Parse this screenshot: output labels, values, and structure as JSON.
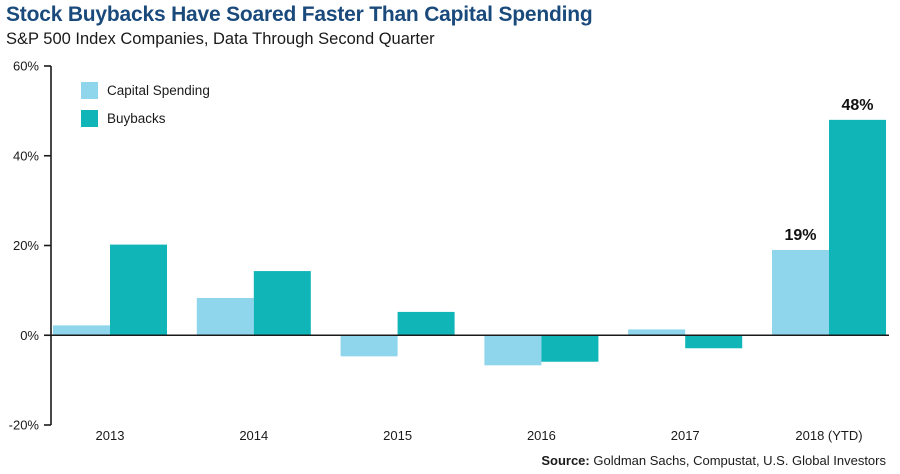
{
  "header": {
    "title": "Stock Buybacks Have Soared Faster Than Capital Spending",
    "subtitle": "S&P 500 Index Companies, Data Through Second Quarter"
  },
  "footer": {
    "source_label": "Source:",
    "source_text": " Goldman Sachs, Compustat, U.S. Global Investors"
  },
  "chart_data": {
    "type": "bar",
    "title": "Stock Buybacks Have Soared Faster Than Capital Spending",
    "subtitle": "S&P 500 Index Companies, Data Through Second Quarter",
    "xlabel": "",
    "ylabel": "",
    "categories": [
      "2013",
      "2014",
      "2015",
      "2016",
      "2017",
      "2018 (YTD)"
    ],
    "series": [
      {
        "name": "Capital Spending",
        "color": "#8fd6ec",
        "values": [
          2.2,
          8.3,
          -4.7,
          -6.7,
          1.3,
          19
        ]
      },
      {
        "name": "Buybacks",
        "color": "#10b5b8",
        "values": [
          20.2,
          14.3,
          5.2,
          -5.9,
          -2.9,
          48
        ]
      }
    ],
    "ylim": [
      -20,
      60
    ],
    "yticks": [
      -20,
      0,
      20,
      40,
      60
    ],
    "ytick_labels": [
      "-20%",
      "0%",
      "20%",
      "40%",
      "60%"
    ],
    "data_labels": [
      {
        "series": "Capital Spending",
        "category": "2018 (YTD)",
        "text": "19%"
      },
      {
        "series": "Buybacks",
        "category": "2018 (YTD)",
        "text": "48%"
      }
    ],
    "legend": {
      "position": "top-left",
      "entries": [
        "Capital Spending",
        "Buybacks"
      ]
    },
    "grid": false
  }
}
